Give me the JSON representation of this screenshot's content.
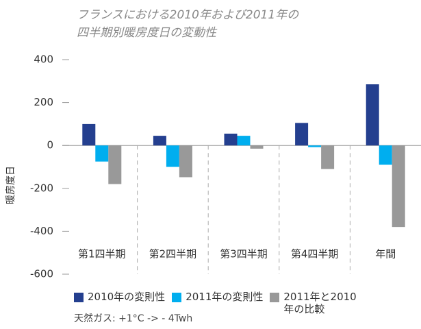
{
  "chart_data": {
    "type": "bar",
    "title_lines": [
      "フランスにおける2010年および2011年の",
      "四半期別暖房度日の変動性"
    ],
    "y_label": "暖房度日",
    "categories": [
      "第1四半期",
      "第2四半期",
      "第3四半期",
      "第4四半期",
      "年間"
    ],
    "series": [
      {
        "name": "2010年の変則性",
        "color": "#243f8f",
        "values": [
          100,
          45,
          55,
          105,
          285
        ]
      },
      {
        "name": "2011年の変則性",
        "color": "#00aeef",
        "values": [
          -75,
          -100,
          45,
          -8,
          -90
        ]
      },
      {
        "name": "2011年と2010年の比較",
        "color": "#999999",
        "values": [
          -180,
          -148,
          -15,
          -110,
          -380
        ]
      }
    ],
    "ylim": [
      -600,
      400
    ],
    "yticks": [
      -600,
      -400,
      -200,
      0,
      200,
      400
    ],
    "grid": false,
    "note": "天然ガス: +1°C -> - 4Twh"
  }
}
